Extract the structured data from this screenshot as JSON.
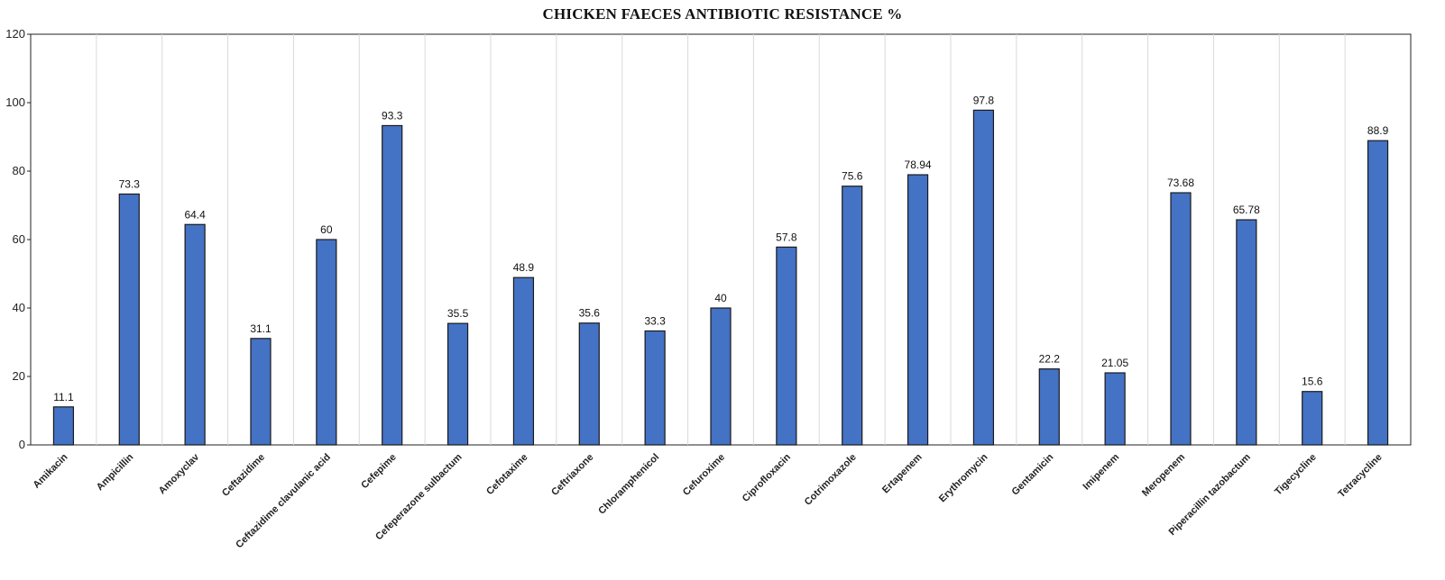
{
  "chart_data": {
    "type": "bar",
    "title": "CHICKEN FAECES ANTIBIOTIC  RESISTANCE %",
    "xlabel": "",
    "ylabel": "",
    "ylim": [
      0,
      120
    ],
    "yticks": [
      0,
      20,
      40,
      60,
      80,
      100,
      120
    ],
    "grid": "vertical",
    "legend": "none",
    "bar_color": "#4472C4",
    "categories": [
      "Amikacin",
      "Ampicillin",
      "Amoxyclav",
      "Ceftazidime",
      "Ceftazidime clavulanic acid",
      "Cefepime",
      "Cefeperazone sulbactum",
      "Cefotaxime",
      "Ceftriaxone",
      "Chloramphenicol",
      "Cefuroxime",
      "Ciprofloxacin",
      "Cotrimoxazole",
      "Ertapenem",
      "Erythromycin",
      "Gentamicin",
      "Imipenem",
      "Meropenem",
      "Piperacillin tazobactum",
      "Tigecycline",
      "Tetracycline"
    ],
    "values": [
      11.1,
      73.3,
      64.4,
      31.1,
      60,
      93.3,
      35.5,
      48.9,
      35.6,
      33.3,
      40,
      57.8,
      75.6,
      78.94,
      97.8,
      22.2,
      21.05,
      73.68,
      65.78,
      15.6,
      88.9
    ],
    "data_labels": [
      "11.1",
      "73.3",
      "64.4",
      "31.1",
      "60",
      "93.3",
      "35.5",
      "48.9",
      "35.6",
      "33.3",
      "40",
      "57.8",
      "75.6",
      "78.94",
      "97.8",
      "22.2",
      "21.05",
      "73.68",
      "65.78",
      "15.6",
      "88.9"
    ]
  }
}
